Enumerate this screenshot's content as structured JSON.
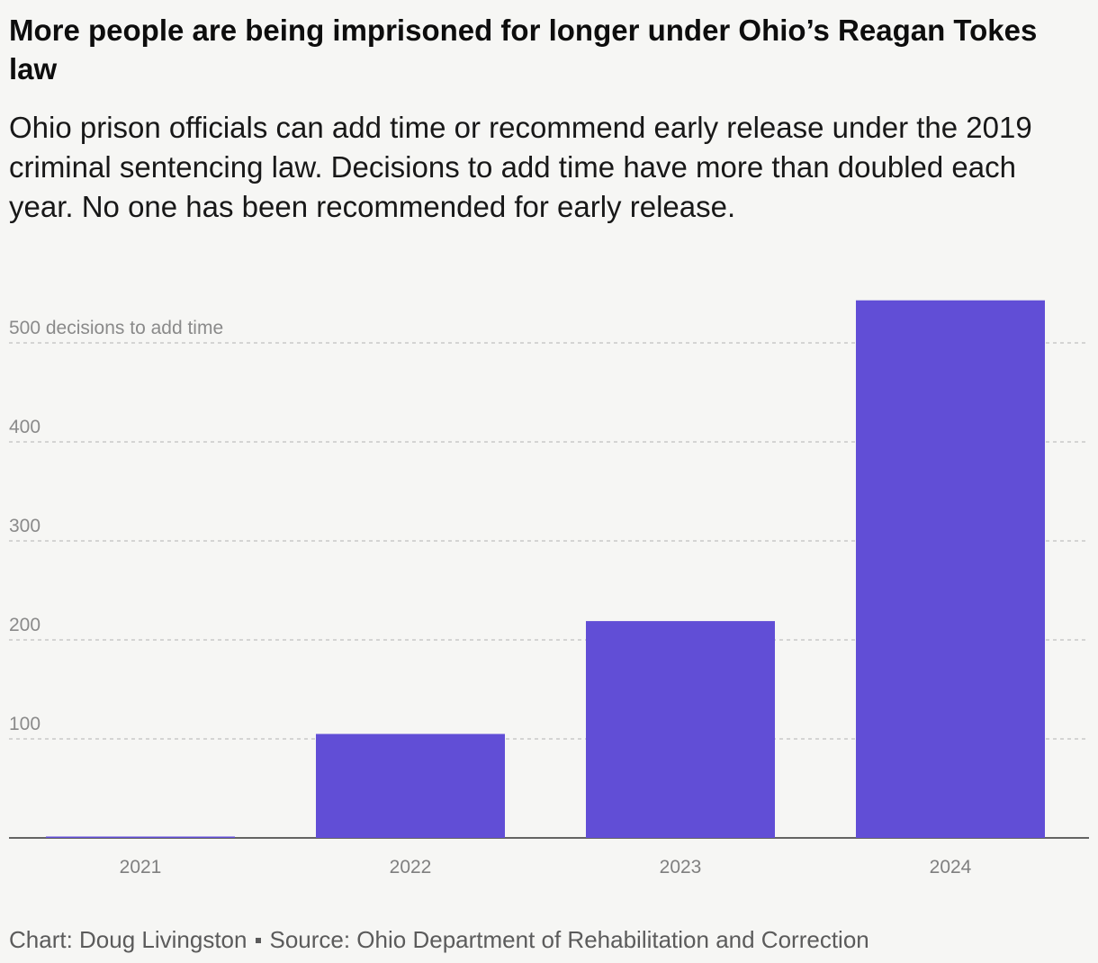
{
  "title": "More people are being imprisoned for longer under Ohio’s Reagan Tokes law",
  "subtitle": "Ohio prison officials can add time or recommend early release under the 2019 criminal sentencing law. Decisions to add time have more than doubled each year. No one has been recommended for early release.",
  "footer": {
    "credit": "Chart: Doug Livingston",
    "source": "Source: Ohio Department of Rehabilitation and Correction"
  },
  "colors": {
    "bar": "#614ed6",
    "background": "#f6f6f4",
    "gridline": "#c8c8c8",
    "baseline": "#333333"
  },
  "chart_data": {
    "type": "bar",
    "categories": [
      "2021",
      "2022",
      "2023",
      "2024"
    ],
    "values": [
      1,
      105,
      219,
      543
    ],
    "ylim": [
      0,
      550
    ],
    "yticks": [
      100,
      200,
      300,
      400,
      500
    ],
    "ytick_labels": [
      "100",
      "200",
      "300",
      "400",
      "500 decisions to add time"
    ],
    "grid": true,
    "legend": "none",
    "xlabel": "",
    "ylabel": ""
  }
}
